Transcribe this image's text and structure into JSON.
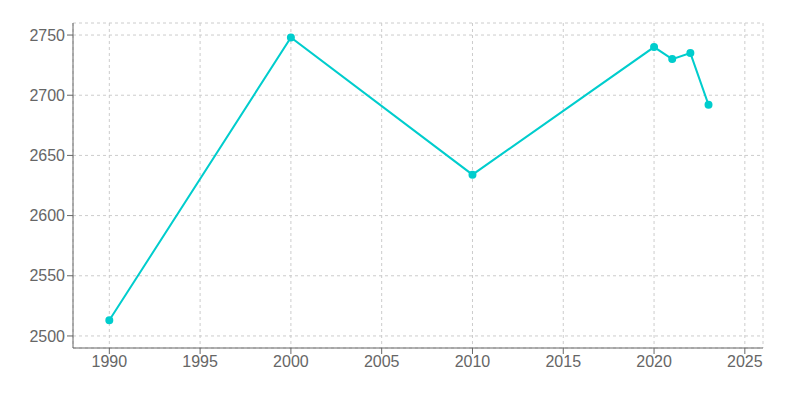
{
  "chart_data": {
    "type": "line",
    "x": [
      1990,
      2000,
      2010,
      2020,
      2021,
      2022,
      2023
    ],
    "values": [
      2513,
      2748,
      2634,
      2740,
      2730,
      2735,
      2692
    ],
    "color": "#00CDCD",
    "marker": "circle",
    "xlim": [
      1988,
      2026
    ],
    "ylim": [
      2490,
      2760
    ],
    "xticks": [
      1990,
      1995,
      2000,
      2005,
      2010,
      2015,
      2020,
      2025
    ],
    "yticks": [
      2500,
      2550,
      2600,
      2650,
      2700,
      2750
    ],
    "grid": true
  }
}
